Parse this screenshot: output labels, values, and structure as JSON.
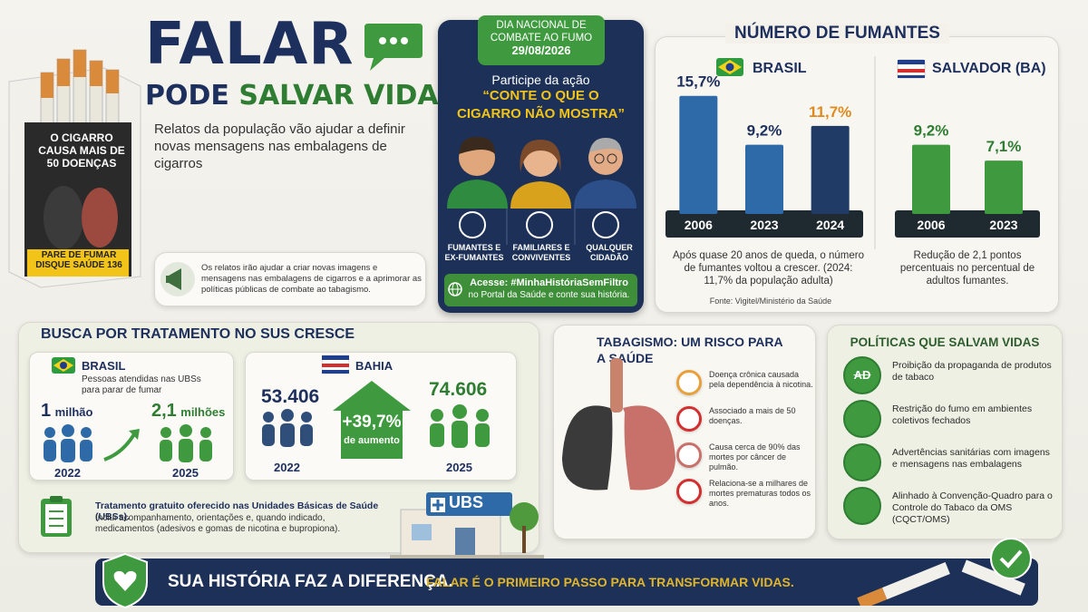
{
  "header": {
    "title_line1": "FALAR",
    "title_line2_a": "PODE",
    "title_line2_b": "SALVAR VIDAS",
    "subtitle": "Relatos da população vão ajudar a definir novas mensagens nas embalagens de cigarros"
  },
  "pack": {
    "warning": "O CIGARRO CAUSA MAIS DE 50 DOENÇAS",
    "hotline": "PARE DE FUMAR DISQUE SAÚDE 136"
  },
  "info_note": "Os relatos irão ajudar a criar novas imagens e mensagens nas embalagens de cigarros e a aprimorar as políticas públicas de combate ao tabagismo.",
  "campaign": {
    "badge_line1": "DIA NACIONAL DE COMBATE AO FUMO",
    "badge_date": "29/08/2026",
    "intro": "Participe da ação",
    "slogan": "“CONTE O QUE O CIGARRO NÃO MOSTRA”",
    "audiences": [
      "FUMANTES E EX-FUMANTES",
      "FAMILIARES E CONVIVENTES",
      "QUALQUER CIDADÃO"
    ],
    "cta_bold": "Acesse: #MinhaHistóriaSemFiltro",
    "cta_text": "no Portal da Saúde e conte sua história."
  },
  "smokers": {
    "title": "NÚMERO DE FUMANTES",
    "brasil_note": "Após quase 20 anos de queda, o número de fumantes voltou a crescer. (2024: 11,7% da população adulta)",
    "salvador_note": "Redução de 2,1 pontos percentuais no percentual de adultos fumantes.",
    "source": "Fonte: Vigitel/Ministério da Saúde"
  },
  "chart_data": [
    {
      "type": "bar",
      "title": "BRASIL",
      "categories": [
        "2006",
        "2023",
        "2024"
      ],
      "values": [
        15.7,
        9.2,
        11.7
      ],
      "value_labels": [
        "15,7%",
        "9,2%",
        "11,7%"
      ],
      "colors": [
        "#2f6aa8",
        "#2f6aa8",
        "#1f3b66"
      ],
      "value_label_colors": [
        "#1d2f5c",
        "#1d2f5c",
        "#e08a1e"
      ]
    },
    {
      "type": "bar",
      "title": "SALVADOR (BA)",
      "categories": [
        "2006",
        "2023"
      ],
      "values": [
        9.2,
        7.1
      ],
      "value_labels": [
        "9,2%",
        "7,1%"
      ],
      "colors": [
        "#3f9a3f",
        "#3f9a3f"
      ],
      "value_label_colors": [
        "#2e7d32",
        "#2e7d32"
      ]
    }
  ],
  "treatment": {
    "title": "BUSCA POR TRATAMENTO NO SUS CRESCE",
    "brasil": {
      "label": "BRASIL",
      "note": "Pessoas atendidas nas UBSs para parar de fumar",
      "from_num": "1",
      "from_unit": "milhão",
      "to_num": "2,1",
      "to_unit": "milhões",
      "from_year": "2022",
      "to_year": "2025"
    },
    "bahia": {
      "label": "BAHIA",
      "from": "53.406",
      "to": "74.606",
      "change": "+39,7%",
      "change_note": "de aumento",
      "from_year": "2022",
      "to_year": "2025"
    },
    "free_title": "Tratamento gratuito oferecido nas Unidades Básicas de Saúde (UBSs).",
    "free_text": "Inclui acompanhamento, orientações e, quando indicado, medicamentos (adesivos e gomas de nicotina e bupropiona).",
    "ubs_sign": "UBS"
  },
  "risk": {
    "title": "TABAGISMO: UM RISCO PARA A SAÚDE",
    "items": [
      "Doença crônica causada pela dependência à nicotina.",
      "Associado a mais de 50 doenças.",
      "Causa cerca de 90% das mortes por câncer de pulmão.",
      "Relaciona-se a milhares de mortes prematuras todos os anos."
    ]
  },
  "policies": {
    "title": "POLÍTICAS QUE SALVAM VIDAS",
    "ad_icon": "AD",
    "items": [
      "Proibição da propaganda de produtos de tabaco",
      "Restrição do fumo em ambientes coletivos fechados",
      "Advertências sanitárias com imagens e mensagens nas embalagens",
      "Alinhado à Convenção-Quadro para o Controle do Tabaco da OMS (CQCT/OMS)"
    ]
  },
  "footer": {
    "left": "SUA HISTÓRIA FAZ A DIFERENÇA.",
    "right": "FALAR É O PRIMEIRO PASSO PARA TRANSFORMAR VIDAS."
  }
}
